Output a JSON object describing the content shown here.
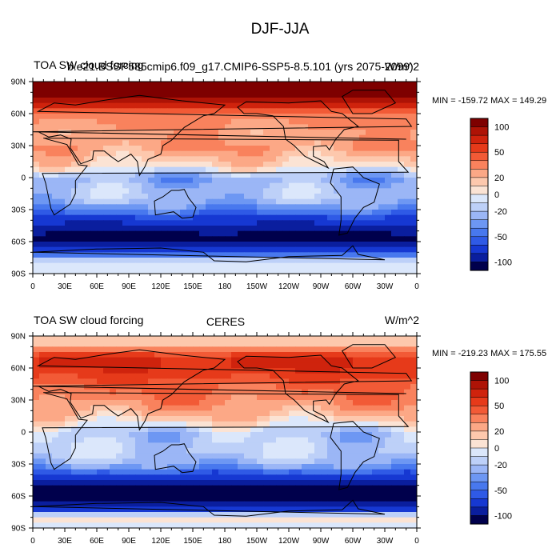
{
  "figure": {
    "title": "DJF-JJA"
  },
  "chart_data": [
    {
      "type": "heatmap",
      "left_title": "TOA SW cloud forcing",
      "center_title": "b.e21.BSSP585cmip6.f09_g17.CMIP6-SSP5-8.5.101 (yrs 2075-2099)",
      "units": "W/m^2",
      "stats": "MIN = -159.72  MAX = 149.29",
      "min": -159.72,
      "max": 149.29,
      "x_ticks": [
        "0",
        "30E",
        "60E",
        "90E",
        "120E",
        "150E",
        "180",
        "150W",
        "120W",
        "90W",
        "60W",
        "30W",
        "0"
      ],
      "y_ticks": [
        "90N",
        "60N",
        "30N",
        "0",
        "30S",
        "60S",
        "90S"
      ],
      "xlim": [
        0,
        360
      ],
      "ylim": [
        -90,
        90
      ],
      "colorbar_levels": [
        -120,
        -100,
        -80,
        -60,
        -50,
        -40,
        -30,
        -20,
        -10,
        0,
        10,
        20,
        30,
        40,
        50,
        60,
        80,
        100,
        120
      ],
      "colorbar_labels": [
        "100",
        "50",
        "20",
        "0",
        "-20",
        "-50",
        "-100"
      ],
      "zonal_profile": {
        "lat": [
          -90,
          -80,
          -70,
          -60,
          -50,
          -40,
          -30,
          -20,
          -10,
          0,
          10,
          20,
          30,
          40,
          50,
          60,
          70,
          80,
          90
        ],
        "value": [
          -5,
          -5,
          -60,
          -110,
          -100,
          -70,
          -40,
          -20,
          -20,
          -30,
          5,
          20,
          30,
          25,
          30,
          35,
          80,
          110,
          110
        ]
      }
    },
    {
      "type": "heatmap",
      "left_title": "TOA SW cloud forcing",
      "center_title": "CERES",
      "units": "W/m^2",
      "stats": "MIN = -219.23  MAX = 175.55",
      "min": -219.23,
      "max": 175.55,
      "x_ticks": [
        "0",
        "30E",
        "60E",
        "90E",
        "120E",
        "150E",
        "180",
        "150W",
        "120W",
        "90W",
        "60W",
        "30W",
        "0"
      ],
      "y_ticks": [
        "90N",
        "60N",
        "30N",
        "0",
        "30S",
        "60S",
        "90S"
      ],
      "xlim": [
        0,
        360
      ],
      "ylim": [
        -90,
        90
      ],
      "colorbar_levels": [
        -120,
        -100,
        -80,
        -60,
        -50,
        -40,
        -30,
        -20,
        -10,
        0,
        10,
        20,
        30,
        40,
        50,
        60,
        80,
        100,
        120
      ],
      "colorbar_labels": [
        "100",
        "50",
        "20",
        "0",
        "-20",
        "-50",
        "-100"
      ],
      "zonal_profile": {
        "lat": [
          -90,
          -80,
          -70,
          -60,
          -50,
          -40,
          -30,
          -20,
          -10,
          0,
          10,
          20,
          30,
          40,
          50,
          60,
          70,
          80,
          90
        ],
        "value": [
          -5,
          10,
          -90,
          -120,
          -100,
          -60,
          -25,
          -15,
          -15,
          -20,
          10,
          25,
          35,
          40,
          50,
          60,
          60,
          20,
          10
        ]
      }
    }
  ],
  "colors": {
    "palette": [
      "#00004c",
      "#0a1e9e",
      "#1638d2",
      "#2f5ae6",
      "#4878ee",
      "#6d97f3",
      "#9bb6f6",
      "#bdd0f8",
      "#dbe7fb",
      "#fbe3d4",
      "#fdc8ad",
      "#fca886",
      "#f9825d",
      "#f25a36",
      "#e63a1a",
      "#cf230d",
      "#ae1306",
      "#7e0000"
    ],
    "land_outline": "#000000",
    "missing": "#ffffff"
  }
}
